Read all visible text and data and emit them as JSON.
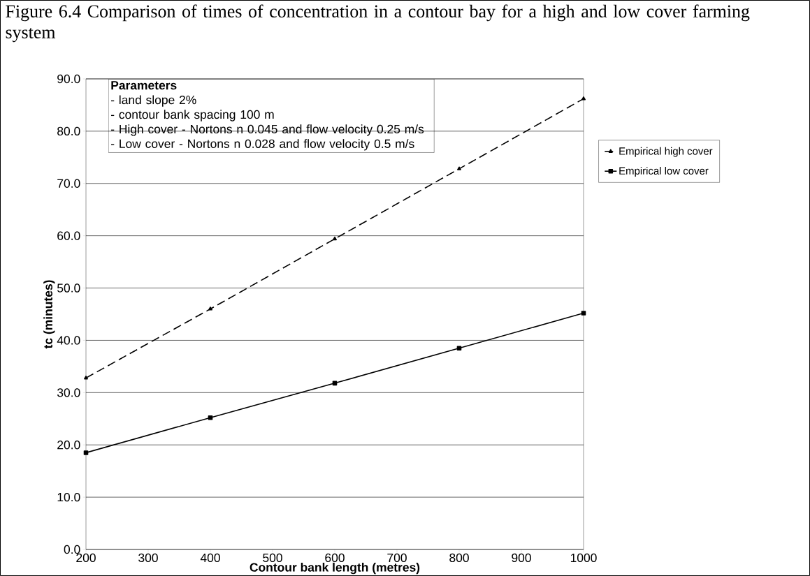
{
  "chart_data": {
    "type": "line",
    "title": "Figure 6.4 Comparison of times of concentration in a contour bay for a high and low cover farming system",
    "xlabel": "Contour bank length (metres)",
    "ylabel": "tc  (minutes)",
    "x": [
      200,
      400,
      600,
      800,
      1000
    ],
    "series": [
      {
        "name": "Empirical high cover",
        "color": "#000000",
        "marker": "triangle",
        "line_style": "dashed",
        "values": [
          32.8,
          46.0,
          59.4,
          72.8,
          86.2
        ]
      },
      {
        "name": "Empirical low cover",
        "color": "#000000",
        "marker": "square",
        "line_style": "solid",
        "values": [
          18.5,
          25.2,
          31.8,
          38.5,
          45.2
        ]
      }
    ],
    "xlim": [
      200,
      1000
    ],
    "xticks": [
      200,
      300,
      400,
      500,
      600,
      700,
      800,
      900,
      1000
    ],
    "ylim": [
      0,
      90
    ],
    "yticks": [
      {
        "value": 0,
        "label": "0.0"
      },
      {
        "value": 10,
        "label": "10.0"
      },
      {
        "value": 20,
        "label": "20.0"
      },
      {
        "value": 30,
        "label": "30.0"
      },
      {
        "value": 40,
        "label": "40.0"
      },
      {
        "value": 50,
        "label": "50.0"
      },
      {
        "value": 60,
        "label": "60.0"
      },
      {
        "value": 70,
        "label": "70.0"
      },
      {
        "value": 80,
        "label": "80.0"
      },
      {
        "value": 90,
        "label": "90.0"
      }
    ],
    "grid": "y",
    "legend": "right",
    "annotations": [
      "**Parameters**",
      "- land slope 2%",
      "- contour bank spacing 100 m",
      "- High cover - Nortons n 0.045 and flow velocity 0.25 m/s",
      "- Low cover - Nortons n 0.028 and flow velocity 0.5 m/s"
    ]
  }
}
